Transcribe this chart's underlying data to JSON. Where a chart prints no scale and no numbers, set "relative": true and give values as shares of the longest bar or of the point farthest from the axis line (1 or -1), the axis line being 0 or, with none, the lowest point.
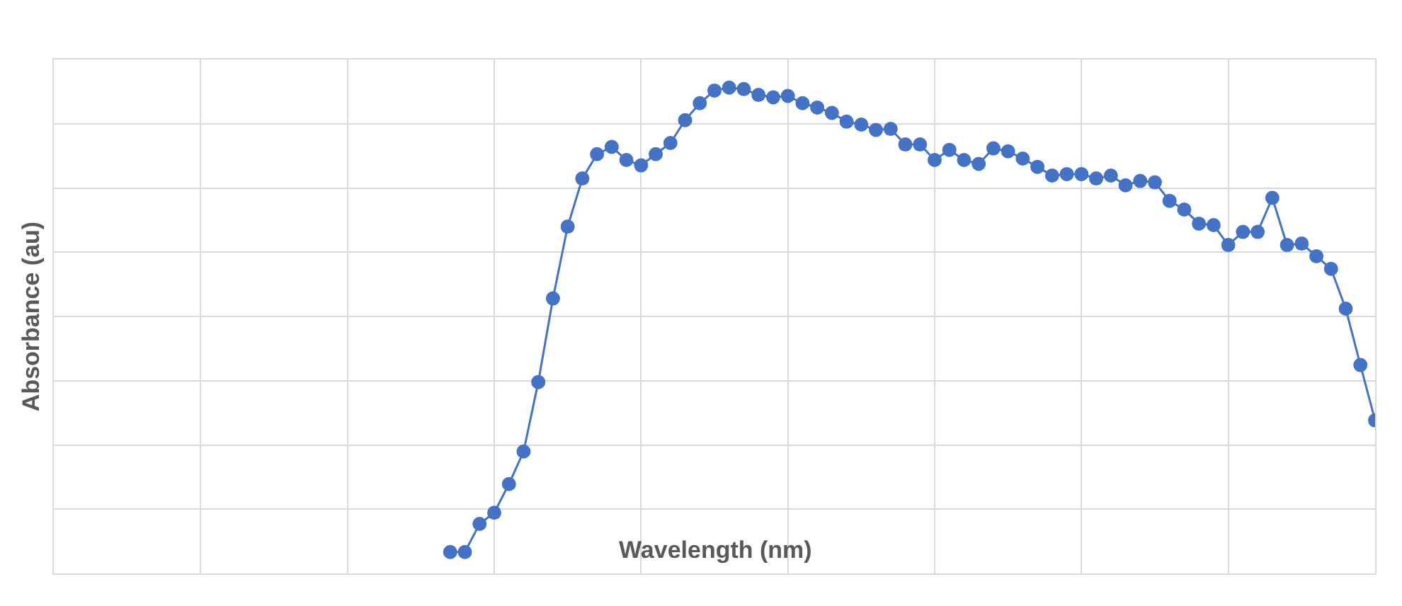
{
  "chart_data": {
    "type": "line",
    "xlabel": "Wavelength (nm)",
    "ylabel": "Absorbance (au)",
    "relative": true,
    "grid": true,
    "legend": false,
    "marker": "circle",
    "line_style": "solid",
    "categories": [
      null,
      null,
      null,
      null,
      null,
      null,
      null,
      null,
      null,
      null,
      null,
      null,
      null,
      null,
      null,
      null,
      null,
      null,
      null,
      null,
      null,
      null,
      null,
      null,
      null,
      null,
      null,
      null,
      null,
      null,
      null,
      null,
      null,
      null,
      null,
      null,
      null,
      null,
      null,
      null,
      null,
      null,
      null,
      null,
      null,
      null,
      null,
      null,
      null,
      null,
      null,
      null,
      null,
      null,
      null,
      null,
      null,
      null,
      null,
      null,
      null,
      null,
      null,
      null,
      null,
      null,
      null,
      null,
      null,
      null,
      null,
      null,
      null,
      null,
      null,
      null,
      null,
      null,
      null,
      null,
      null,
      null,
      null,
      null,
      null,
      null,
      null,
      null,
      null,
      null,
      null
    ],
    "series": [
      {
        "color": "#4472c4",
        "values": [
          null,
          null,
          null,
          null,
          null,
          null,
          null,
          null,
          null,
          null,
          null,
          null,
          null,
          null,
          null,
          null,
          null,
          null,
          null,
          null,
          null,
          null,
          null,
          null,
          null,
          null,
          null,
          0.044,
          0.044,
          0.102,
          0.125,
          0.184,
          0.251,
          0.394,
          0.566,
          0.714,
          0.813,
          0.863,
          0.878,
          0.851,
          0.84,
          0.863,
          0.886,
          0.933,
          0.968,
          0.994,
          1,
          0.997,
          0.985,
          0.98,
          0.983,
          0.968,
          0.959,
          0.948,
          0.93,
          0.924,
          0.913,
          0.915,
          0.883,
          0.883,
          0.851,
          0.872,
          0.851,
          0.843,
          0.875,
          0.869,
          0.854,
          0.837,
          0.819,
          0.822,
          0.822,
          0.813,
          0.819,
          0.799,
          0.808,
          0.805,
          0.767,
          0.749,
          0.72,
          0.717,
          0.676,
          0.703,
          0.703,
          0.773,
          0.676,
          0.679,
          0.653,
          0.627,
          0.545,
          0.429,
          0.315
        ]
      }
    ]
  }
}
